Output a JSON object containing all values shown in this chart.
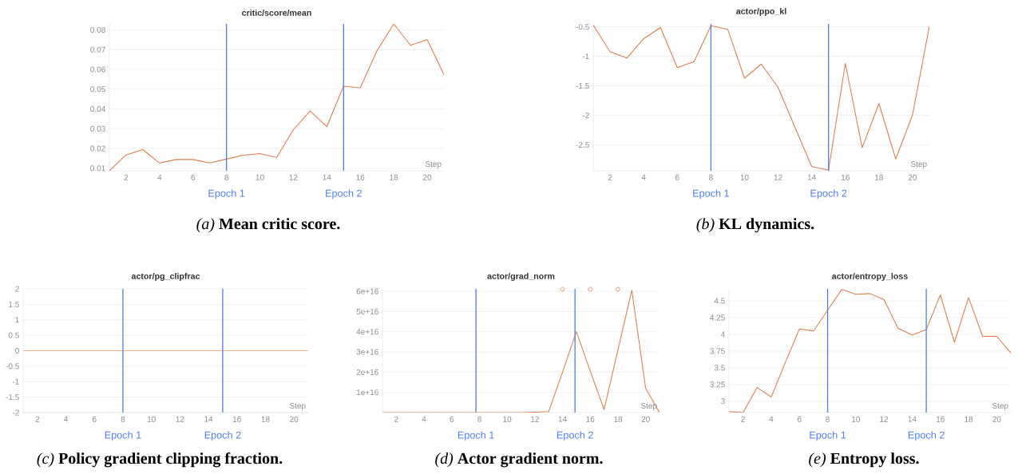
{
  "chart_data": [
    {
      "type": "line",
      "title": "critic/score/mean",
      "xlabel": "Step",
      "x": [
        1,
        2,
        3,
        4,
        5,
        6,
        7,
        8,
        9,
        10,
        11,
        12,
        13,
        14,
        15,
        16,
        17,
        18,
        19,
        20,
        21
      ],
      "series": [
        {
          "color": "#e07c4c",
          "values": [
            0.0087,
            0.0167,
            0.0194,
            0.0126,
            0.0144,
            0.0144,
            0.0126,
            0.0146,
            0.0166,
            0.0174,
            0.0155,
            0.0295,
            0.0389,
            0.0311,
            0.0515,
            0.0507,
            0.0695,
            0.083,
            0.0722,
            0.075,
            0.0574
          ]
        }
      ],
      "xlim": [
        1,
        21
      ],
      "ylim": [
        0.0087,
        0.083
      ],
      "xticks": [
        2,
        4,
        6,
        8,
        10,
        12,
        14,
        16,
        18,
        20
      ],
      "yticks": [
        0.01,
        0.02,
        0.03,
        0.04,
        0.05,
        0.06,
        0.07,
        0.08
      ],
      "grid": "y",
      "ref_lines": [
        {
          "axis": "x",
          "value": 8,
          "label": "Epoch 1",
          "color": "#4f7ff0"
        },
        {
          "axis": "x",
          "value": 15,
          "label": "Epoch 2",
          "color": "#4f7ff0"
        }
      ],
      "annotations": [
        "*(a)* **Mean critic score.**"
      ]
    },
    {
      "type": "line",
      "title": "actor/ppo_kl",
      "xlabel": "Step",
      "x": [
        1,
        2,
        3,
        4,
        5,
        6,
        7,
        8,
        9,
        10,
        11,
        12,
        13,
        14,
        15,
        16,
        17,
        18,
        19,
        20,
        21
      ],
      "series": [
        {
          "color": "#e07c4c",
          "values": [
            -0.47,
            -0.92,
            -1.03,
            -0.7,
            -0.51,
            -1.19,
            -1.09,
            -0.48,
            -0.54,
            -1.37,
            -1.13,
            -1.53,
            -2.2,
            -2.87,
            -2.93,
            -1.12,
            -2.55,
            -1.8,
            -2.74,
            -1.99,
            -0.49
          ]
        }
      ],
      "xlim": [
        1,
        21
      ],
      "ylim": [
        -2.94,
        -0.45
      ],
      "xticks": [
        2,
        4,
        6,
        8,
        10,
        12,
        14,
        16,
        18,
        20
      ],
      "yticks": [
        -2.5,
        -2,
        -1.5,
        -1,
        -0.5
      ],
      "grid": "y",
      "ref_lines": [
        {
          "axis": "x",
          "value": 8,
          "label": "Epoch 1",
          "color": "#4f7ff0"
        },
        {
          "axis": "x",
          "value": 15,
          "label": "Epoch 2",
          "color": "#4f7ff0"
        }
      ],
      "annotations": [
        "*(b)* **KL dynamics.**"
      ]
    },
    {
      "type": "line",
      "title": "actor/pg_clipfrac",
      "xlabel": "Step",
      "x": [
        1,
        2,
        3,
        4,
        5,
        6,
        7,
        8,
        9,
        10,
        11,
        12,
        13,
        14,
        15,
        16,
        17,
        18,
        19,
        20,
        21
      ],
      "series": [
        {
          "color": "#f0ae8a",
          "values": [
            0,
            0,
            0,
            0,
            0,
            0,
            0,
            0,
            0,
            0,
            0,
            0,
            0,
            0,
            0,
            0,
            0,
            0,
            0,
            0,
            0
          ]
        }
      ],
      "xlim": [
        1,
        21
      ],
      "ylim": [
        -2,
        2
      ],
      "xticks": [
        2,
        4,
        6,
        8,
        10,
        12,
        14,
        16,
        18,
        20
      ],
      "yticks": [
        -2,
        -1.5,
        -1,
        -0.5,
        0,
        0.5,
        1,
        1.5,
        2
      ],
      "grid": "y",
      "ref_lines": [
        {
          "axis": "x",
          "value": 8,
          "label": "Epoch 1",
          "color": "#4f7ff0"
        },
        {
          "axis": "x",
          "value": 15,
          "label": "Epoch 2",
          "color": "#4f7ff0"
        }
      ],
      "annotations": [
        "*(c)* **Policy gradient clipping fraction.**"
      ]
    },
    {
      "type": "line",
      "title": "actor/grad_norm",
      "xlabel": "Step",
      "x": [
        1,
        2,
        3,
        4,
        5,
        6,
        7,
        8,
        9,
        10,
        11,
        12,
        13,
        14,
        15,
        16,
        17,
        18,
        19,
        20,
        21
      ],
      "series": [
        {
          "color": "#e07c4c",
          "values": [
            0,
            0,
            0,
            0,
            0,
            0,
            0,
            0,
            0,
            0,
            0,
            200000000000000.0,
            500000000000000.0,
            2e+16,
            4e+16,
            2.05e+16,
            1500000000000000.0,
            3.1e+16,
            6.05e+16,
            1.2e+16,
            0
          ]
        },
        {
          "type": "scatter",
          "marker": "circle",
          "color": "#e07c4c",
          "x": [
            14,
            16,
            18
          ],
          "values": [
            6.1e+16,
            6.1e+16,
            6.1e+16
          ]
        }
      ],
      "xlim": [
        1,
        21
      ],
      "ylim": [
        0,
        6.12e+16
      ],
      "xticks": [
        2,
        4,
        6,
        8,
        10,
        12,
        14,
        16,
        18,
        20
      ],
      "yticks": [
        {
          "value": 1e+16,
          "label": "1e+16"
        },
        {
          "value": 2e+16,
          "label": "2e+16"
        },
        {
          "value": 3e+16,
          "label": "3e+16"
        },
        {
          "value": 4e+16,
          "label": "4e+16"
        },
        {
          "value": 5e+16,
          "label": "5e+16"
        },
        {
          "value": 6e+16,
          "label": "6e+16"
        }
      ],
      "grid": "y",
      "ref_lines": [
        {
          "axis": "x",
          "value": 7.75,
          "label": "Epoch 1",
          "color": "#4f7ff0"
        },
        {
          "axis": "x",
          "value": 14.9,
          "label": "Epoch 2",
          "color": "#4f7ff0"
        }
      ],
      "annotations": [
        "*(d)* **Actor gradient norm.**"
      ]
    },
    {
      "type": "line",
      "title": "actor/entropy_loss",
      "xlabel": "Step",
      "x": [
        1,
        2,
        3,
        4,
        5,
        6,
        7,
        8,
        9,
        10,
        11,
        12,
        13,
        14,
        15,
        16,
        17,
        18,
        19,
        20,
        21
      ],
      "series": [
        {
          "color": "#e07c4c",
          "values": [
            2.846,
            2.83,
            3.205,
            3.063,
            3.58,
            4.08,
            4.05,
            4.36,
            4.67,
            4.6,
            4.61,
            4.52,
            4.09,
            3.99,
            4.07,
            4.59,
            3.88,
            4.55,
            3.97,
            3.97,
            3.72
          ]
        }
      ],
      "xlim": [
        1,
        21
      ],
      "ylim": [
        2.83,
        4.68
      ],
      "xticks": [
        2,
        4,
        6,
        8,
        10,
        12,
        14,
        16,
        18,
        20
      ],
      "yticks": [
        3,
        3.25,
        3.5,
        3.75,
        4,
        4.25,
        4.5
      ],
      "grid": "y",
      "ref_lines": [
        {
          "axis": "x",
          "value": 8,
          "label": "Epoch 1",
          "color": "#4f7ff0"
        },
        {
          "axis": "x",
          "value": 15,
          "label": "Epoch 2",
          "color": "#4f7ff0"
        }
      ],
      "annotations": [
        "*(e)* **Entropy loss.**"
      ]
    }
  ]
}
